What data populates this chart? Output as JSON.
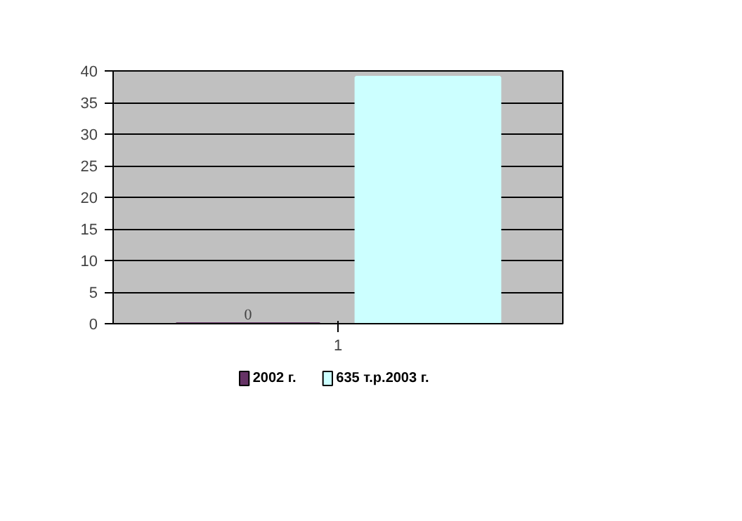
{
  "chart_data": {
    "type": "bar",
    "categories": [
      "1"
    ],
    "series": [
      {
        "name": "2002 г.",
        "color": "#663366",
        "values": [
          0
        ],
        "value_labels": [
          "0"
        ]
      },
      {
        "name": "635 т.р.2003 г.",
        "color": "#ccffff",
        "values": [
          39
        ],
        "value_labels": [
          null
        ]
      }
    ],
    "ylim": [
      0,
      40
    ],
    "yticks": [
      0,
      5,
      10,
      15,
      20,
      25,
      30,
      35,
      40
    ],
    "grid": "y",
    "legend": "bottom"
  }
}
